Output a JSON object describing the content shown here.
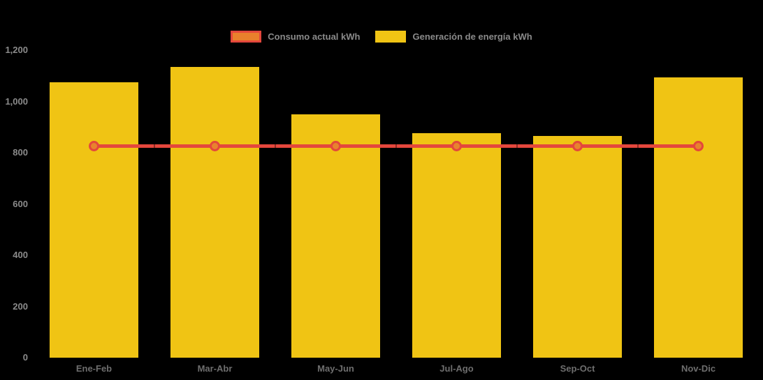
{
  "colors": {
    "background": "#000000",
    "bar": "#f0c414",
    "line": "#e4473c",
    "marker_fill": "#e8832d",
    "y_label_text": "#8b8b8b",
    "x_label_text": "#6e6e6e",
    "legend_text": "#8a8a8a"
  },
  "legend": {
    "items": [
      {
        "label": "Consumo actual kWh",
        "swatch_fill": "#e8802c",
        "swatch_border": "#e4473c"
      },
      {
        "label": "Generación de energía kWh",
        "swatch_fill": "#f0c414",
        "swatch_border": "#f0c414"
      }
    ]
  },
  "axes": {
    "y_tick_labels": [
      "0",
      "200",
      "400",
      "600",
      "800",
      "1,000",
      "1,200"
    ],
    "x_tick_labels": [
      "Ene-Feb",
      "Mar-Abr",
      "May-Jun",
      "Jul-Ago",
      "Sep-Oct",
      "Nov-Dic"
    ]
  },
  "chart_data": {
    "type": "bar",
    "title": "",
    "categories": [
      "Ene-Feb",
      "Mar-Abr",
      "May-Jun",
      "Jul-Ago",
      "Sep-Oct",
      "Nov-Dic"
    ],
    "series": [
      {
        "name": "Consumo actual kWh",
        "type": "line",
        "values": [
          825,
          825,
          825,
          825,
          825,
          825
        ],
        "color": "#e4473c",
        "marker_fill": "#e8832d"
      },
      {
        "name": "Generación de energía kWh",
        "type": "bar",
        "values": [
          1075,
          1135,
          950,
          875,
          865,
          1095
        ],
        "color": "#f0c414"
      }
    ],
    "xlabel": "",
    "ylabel": "",
    "ylim": [
      0,
      1200
    ],
    "yticks": [
      0,
      200,
      400,
      600,
      800,
      1000,
      1200
    ],
    "grid": false,
    "legend_position": "top"
  }
}
